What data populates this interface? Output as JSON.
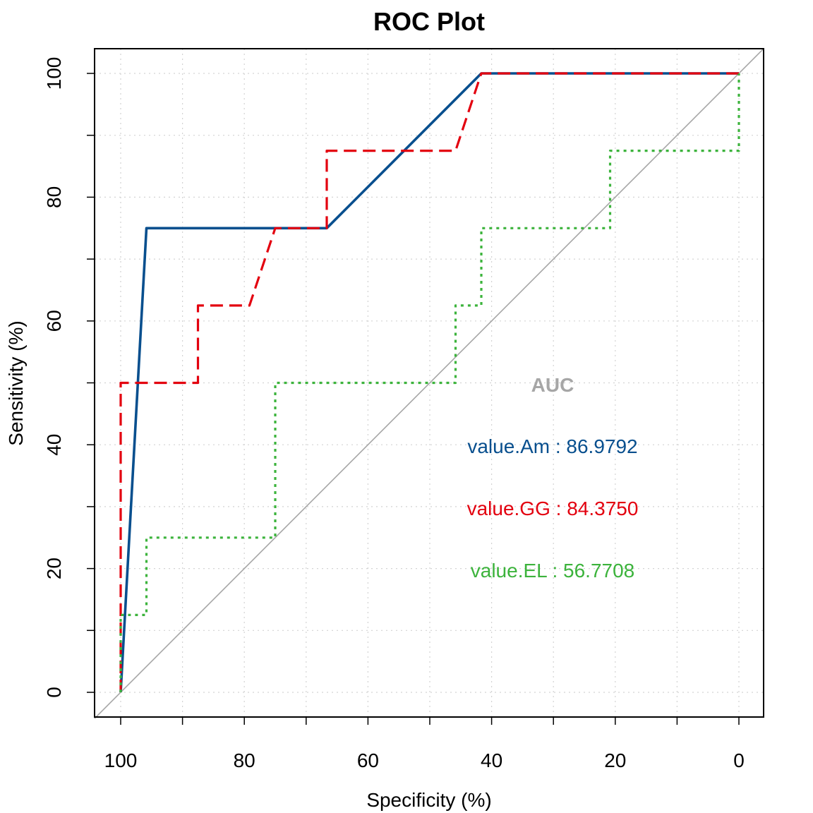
{
  "chart_data": {
    "type": "line",
    "title": "ROC Plot",
    "xlabel": "Specificity (%)",
    "ylabel": "Sensitivity (%)",
    "xlim": [
      100,
      0
    ],
    "ylim": [
      0,
      100
    ],
    "x_reversed": true,
    "x_ticks": [
      "100",
      "80",
      "60",
      "40",
      "20",
      "0"
    ],
    "y_ticks": [
      "0",
      "20",
      "40",
      "60",
      "80",
      "100"
    ],
    "grid": true,
    "diagonal_reference": true,
    "series": [
      {
        "key": "Am",
        "color": "#084f8e",
        "style": "solid",
        "points": [
          [
            100,
            0
          ],
          [
            95.83,
            75
          ],
          [
            66.67,
            75
          ],
          [
            41.67,
            100
          ],
          [
            0,
            100
          ]
        ]
      },
      {
        "key": "GG",
        "color": "#e3000f",
        "style": "dashed",
        "points": [
          [
            100,
            0
          ],
          [
            100,
            50
          ],
          [
            87.5,
            50
          ],
          [
            87.5,
            62.5
          ],
          [
            79.17,
            62.5
          ],
          [
            75,
            75
          ],
          [
            66.67,
            75
          ],
          [
            66.67,
            87.5
          ],
          [
            45.83,
            87.5
          ],
          [
            41.67,
            100
          ],
          [
            0,
            100
          ]
        ]
      },
      {
        "key": "EL",
        "color": "#3cb33c",
        "style": "dotted",
        "points": [
          [
            100,
            0
          ],
          [
            100,
            12.5
          ],
          [
            95.83,
            12.5
          ],
          [
            95.83,
            25
          ],
          [
            75,
            25
          ],
          [
            75,
            50
          ],
          [
            45.83,
            50
          ],
          [
            45.83,
            62.5
          ],
          [
            41.67,
            62.5
          ],
          [
            41.67,
            75
          ],
          [
            20.83,
            75
          ],
          [
            20.83,
            87.5
          ],
          [
            0,
            87.5
          ],
          [
            0,
            100
          ]
        ]
      }
    ],
    "auc_legend": {
      "heading": "AUC",
      "heading_color": "#a6a6a6",
      "entries": [
        {
          "text": "value.Am : 86.9792",
          "color": "#084f8e"
        },
        {
          "text": "value.GG : 84.3750",
          "color": "#e3000f"
        },
        {
          "text": "value.EL : 56.7708",
          "color": "#3cb33c"
        }
      ]
    }
  }
}
